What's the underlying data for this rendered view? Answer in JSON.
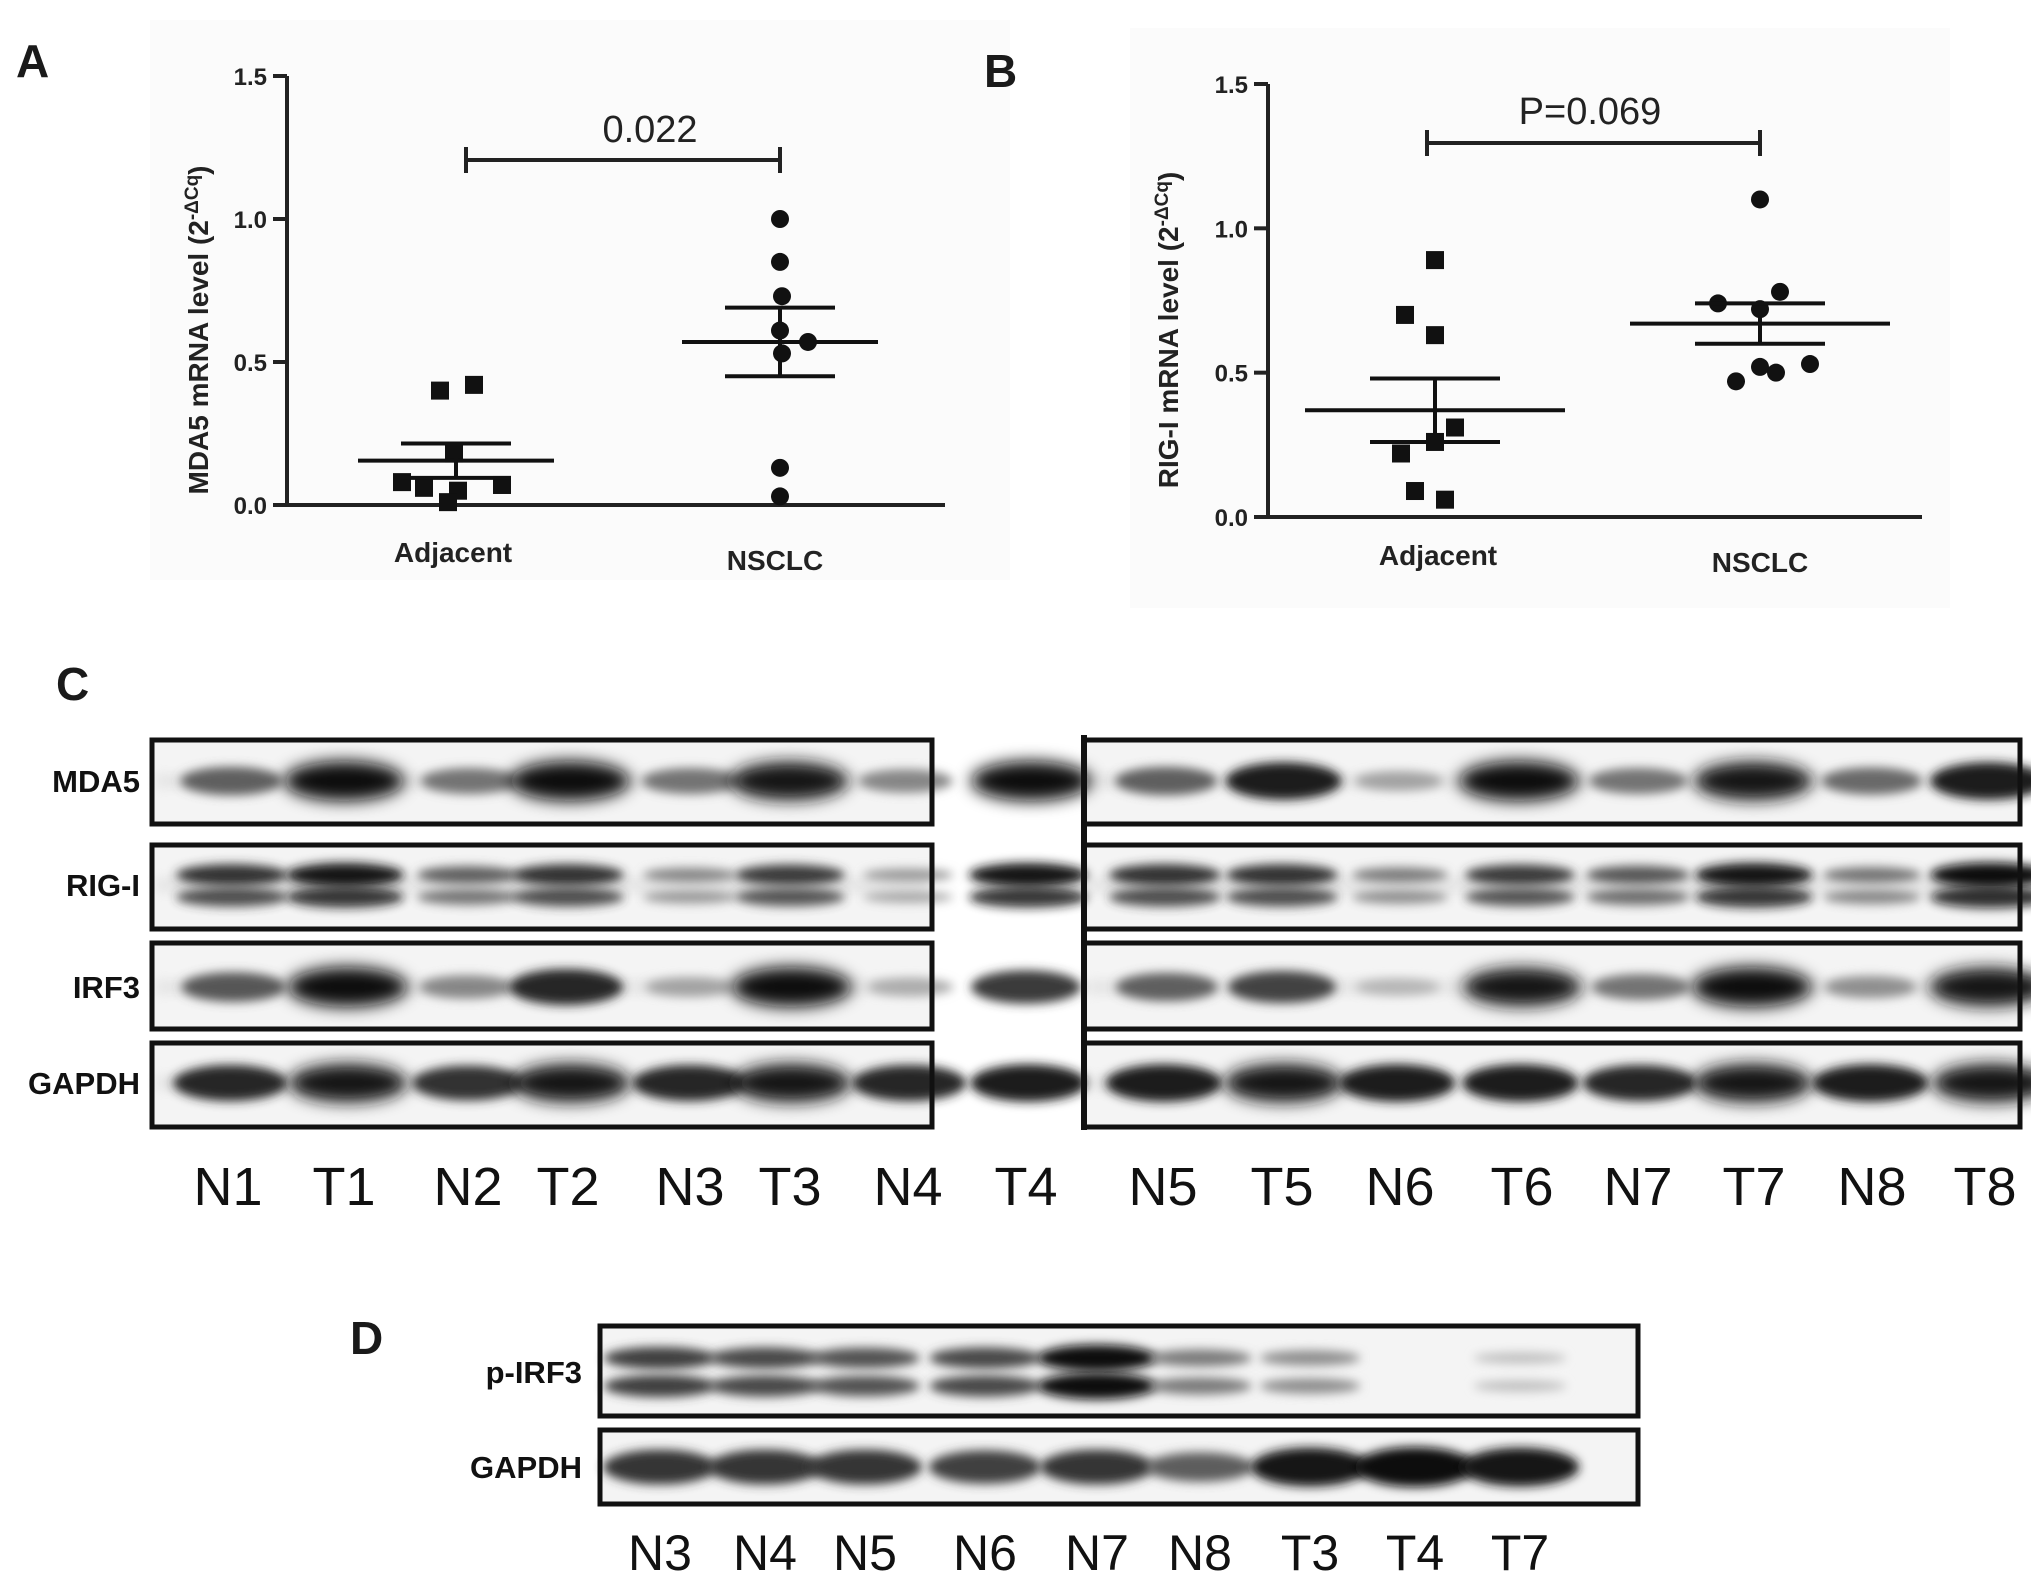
{
  "chart_data": [
    {
      "type": "scatter",
      "panel": "A",
      "ylabel_main": "MDA5 mRNA level (2",
      "ylabel_sup": "-ΔCq",
      "ylabel_close": ")",
      "ylim": [
        0,
        1.5
      ],
      "yticks": [
        "0.0",
        "0.5",
        "1.0",
        "1.5"
      ],
      "ytick_values": [
        0,
        0.5,
        1.0,
        1.5
      ],
      "categories": [
        "Adjacent",
        "NSCLC"
      ],
      "series": [
        {
          "category": "Adjacent",
          "marker": "square",
          "values": [
            0.4,
            0.42,
            0.18,
            0.08,
            0.05,
            0.06,
            0.07,
            0.01
          ],
          "mean": 0.155,
          "sem_low": 0.095,
          "sem_high": 0.215
        },
        {
          "category": "NSCLC",
          "marker": "circle",
          "values": [
            1.0,
            0.85,
            0.73,
            0.61,
            0.57,
            0.53,
            0.13,
            0.03
          ],
          "mean": 0.57,
          "sem_low": 0.45,
          "sem_high": 0.69
        }
      ],
      "annotation": "0.022"
    },
    {
      "type": "scatter",
      "panel": "B",
      "ylabel_main": "RIG-I mRNA level (2",
      "ylabel_sup": "-ΔCq",
      "ylabel_close": ")",
      "ylim": [
        0,
        1.5
      ],
      "yticks": [
        "0.0",
        "0.5",
        "1.0",
        "1.5"
      ],
      "ytick_values": [
        0,
        0.5,
        1.0,
        1.5
      ],
      "categories": [
        "Adjacent",
        "NSCLC"
      ],
      "series": [
        {
          "category": "Adjacent",
          "marker": "square",
          "values": [
            0.89,
            0.7,
            0.63,
            0.22,
            0.26,
            0.31,
            0.09,
            0.06
          ],
          "mean": 0.37,
          "sem_low": 0.26,
          "sem_high": 0.48
        },
        {
          "category": "NSCLC",
          "marker": "circle",
          "values": [
            1.1,
            0.78,
            0.74,
            0.72,
            0.53,
            0.52,
            0.5,
            0.47
          ],
          "mean": 0.67,
          "sem_low": 0.6,
          "sem_high": 0.74
        }
      ],
      "annotation": "P=0.069"
    }
  ],
  "panel_labels": {
    "a": "A",
    "b": "B",
    "c": "C",
    "d": "D"
  },
  "blot_c": {
    "rows": [
      "MDA5",
      "RIG-I",
      "IRF3",
      "GAPDH"
    ],
    "lanes": [
      "N1",
      "T1",
      "N2",
      "T2",
      "N3",
      "T3",
      "N4",
      "T4",
      "N5",
      "T5",
      "N6",
      "T6",
      "N7",
      "T7",
      "N8",
      "T8"
    ]
  },
  "blot_d": {
    "rows": [
      "p-IRF3",
      "GAPDH"
    ],
    "lanes": [
      "N3",
      "N4",
      "N5",
      "N6",
      "N7",
      "N8",
      "T3",
      "T4",
      "T7"
    ]
  }
}
